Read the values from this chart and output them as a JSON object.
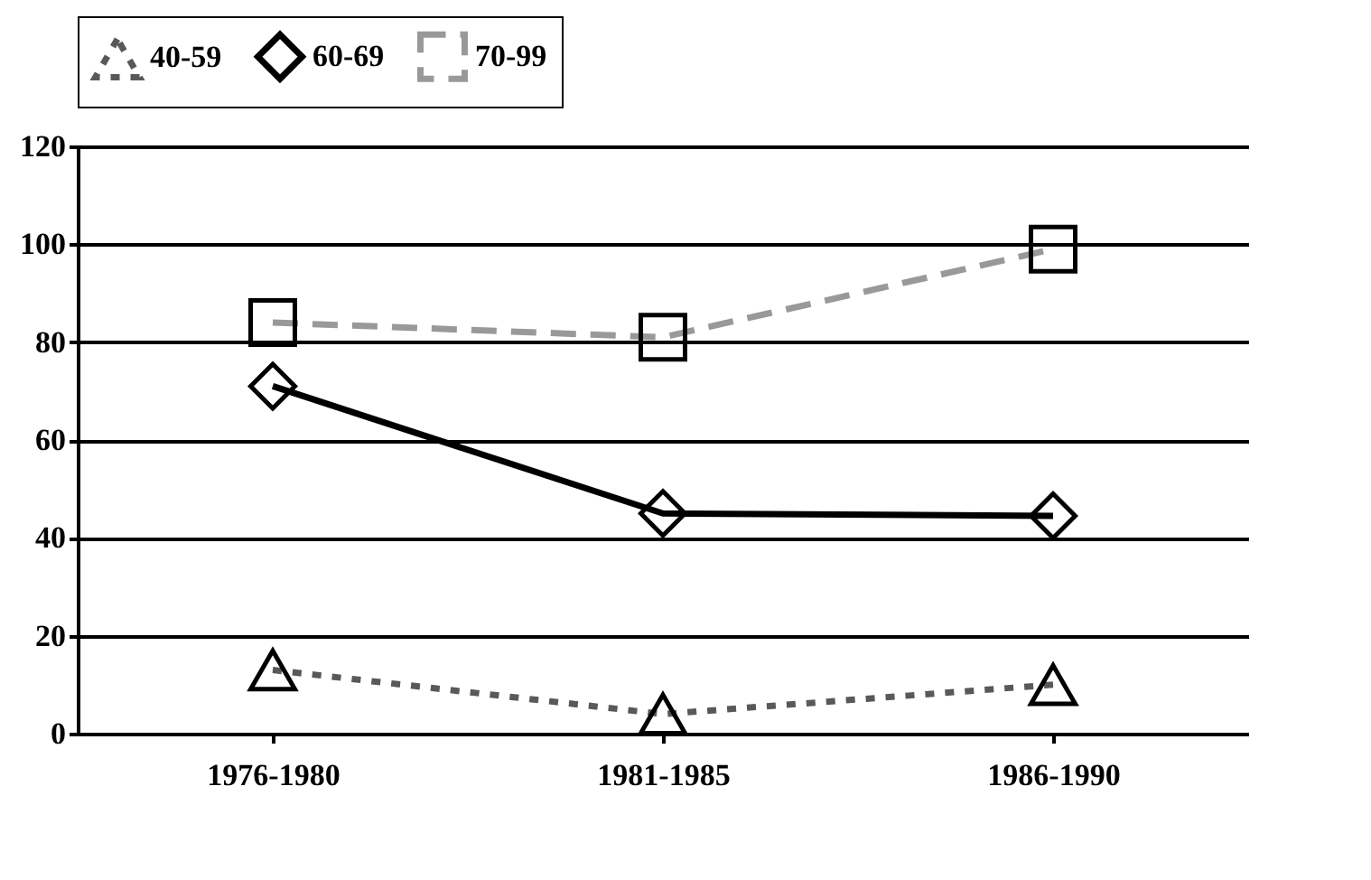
{
  "chart_data": {
    "type": "line",
    "categories": [
      "1976-1980",
      "1981-1985",
      "1986-1990"
    ],
    "series": [
      {
        "name": "40-59",
        "color": "#595959",
        "values": [
          13,
          4,
          10
        ],
        "marker": "triangle",
        "line_style": "dotted"
      },
      {
        "name": "60-69",
        "color": "#000000",
        "values": [
          71,
          45,
          44.5
        ],
        "marker": "diamond",
        "line_style": "solid"
      },
      {
        "name": "70-99",
        "color": "#999999",
        "values": [
          84,
          81,
          99
        ],
        "marker": "square",
        "line_style": "dashed"
      }
    ],
    "ylim": [
      0,
      120
    ],
    "yticks": [
      0,
      20,
      40,
      60,
      80,
      100,
      120
    ],
    "grid": "y",
    "legend": "top"
  }
}
